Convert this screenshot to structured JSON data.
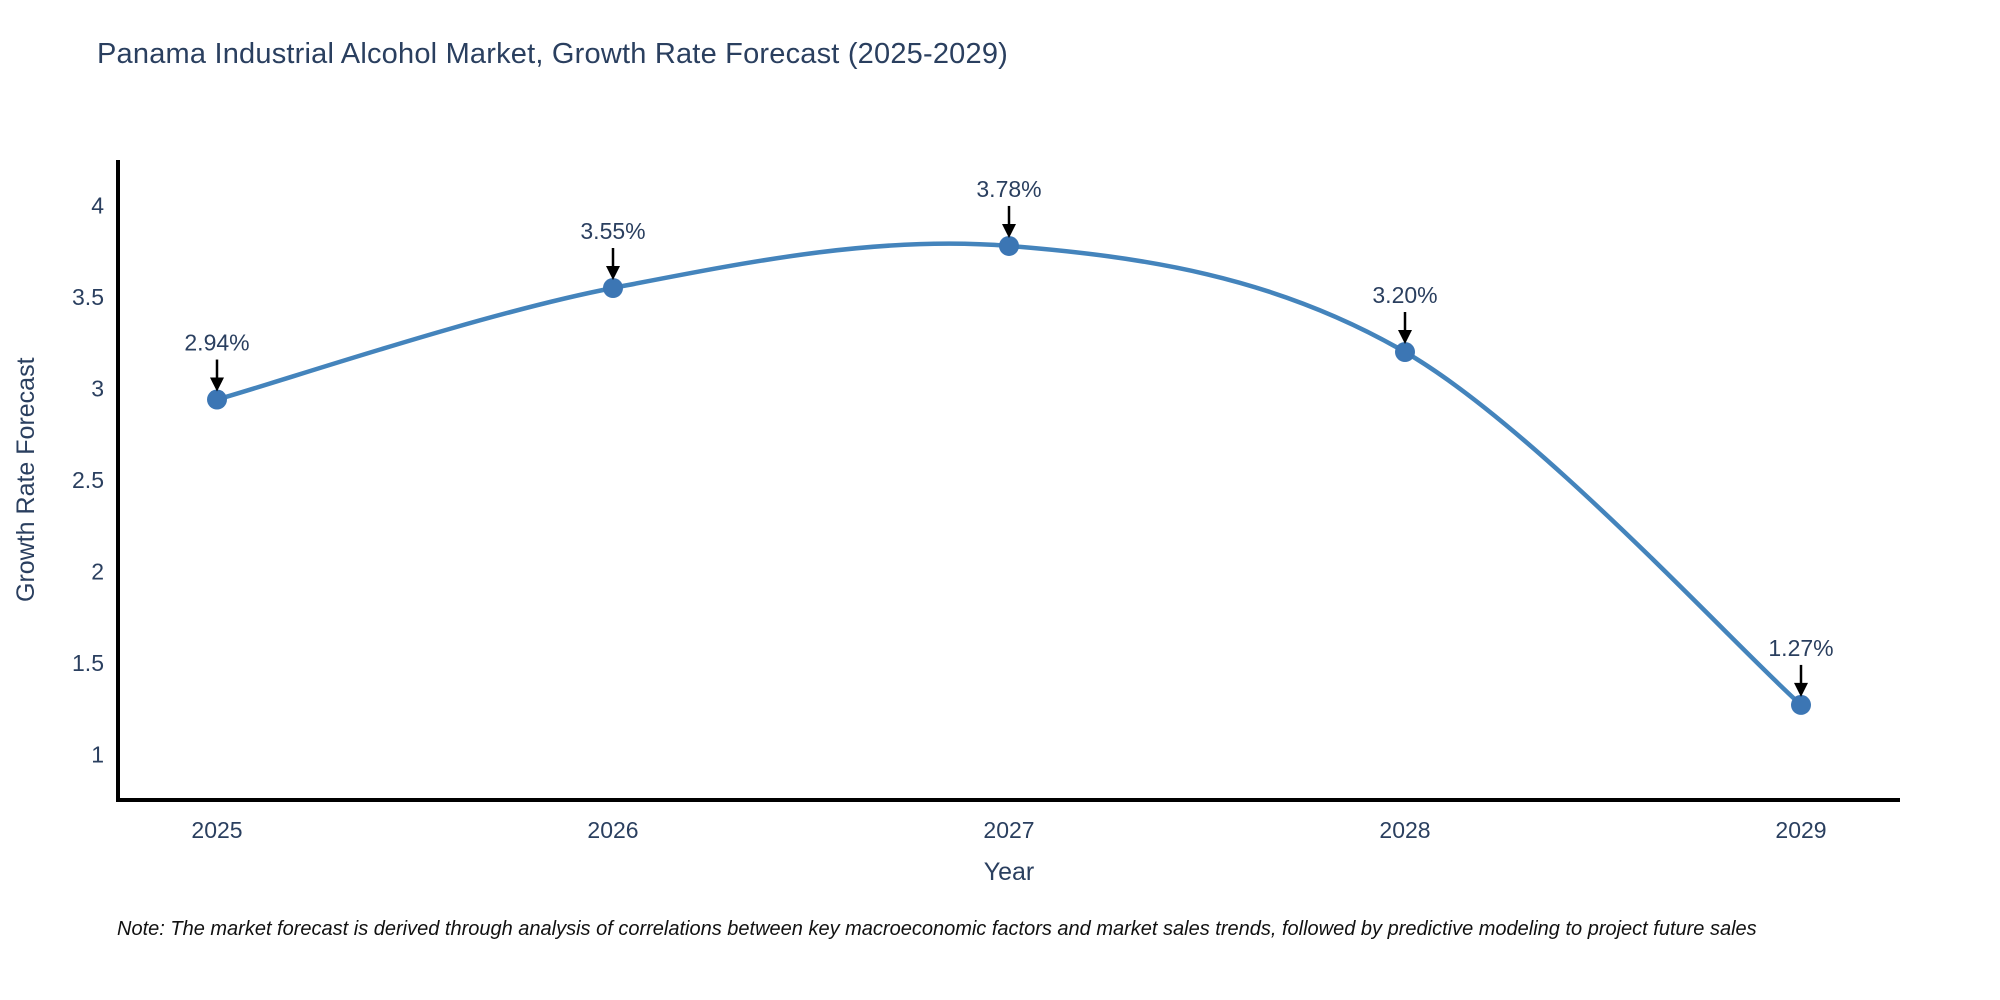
{
  "title": "Panama Industrial Alcohol Market, Growth Rate Forecast (2025-2029)",
  "note": "Note: The market forecast is derived through analysis of correlations between key macroeconomic factors and market sales trends, followed by predictive modeling to project future sales",
  "chart_data": {
    "type": "line",
    "line_shape": "spline",
    "title": "Panama Industrial Alcohol Market, Growth Rate Forecast (2025-2029)",
    "xlabel": "Year",
    "ylabel": "Growth Rate Forecast",
    "x": [
      2025,
      2026,
      2027,
      2028,
      2029
    ],
    "values": [
      2.94,
      3.55,
      3.78,
      3.2,
      1.27
    ],
    "point_labels": [
      "2.94%",
      "3.55%",
      "3.78%",
      "3.20%",
      "1.27%"
    ],
    "xticks": [
      "2025",
      "2026",
      "2027",
      "2028",
      "2029"
    ],
    "yticks": [
      1,
      1.5,
      2,
      2.5,
      3,
      3.5,
      4
    ],
    "xlim": [
      2024.75,
      2029.25
    ],
    "ylim": [
      0.75,
      4.25
    ],
    "grid": false,
    "legend": false,
    "annotations_arrow": true,
    "colors": {
      "line": "#4484bc",
      "marker": "#3c76b4",
      "axis": "#000000",
      "tick_text": "#2a3f5f",
      "annotation_text": "#2a3f5f",
      "arrow": "#000000",
      "title_text": "#2a3f5f",
      "background": "#ffffff"
    }
  }
}
